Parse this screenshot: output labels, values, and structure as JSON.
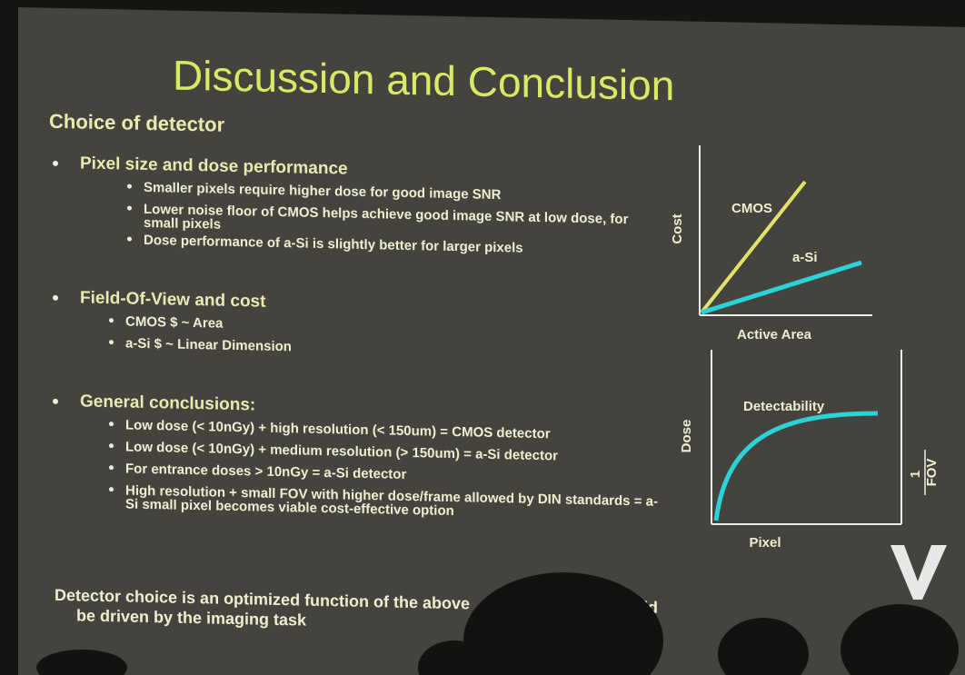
{
  "slide": {
    "title": "Discussion and Conclusion",
    "heading": "Choice of detector",
    "sections": [
      {
        "label": "Pixel size and dose performance",
        "items": [
          "Smaller pixels require higher dose for good image SNR",
          "Lower noise floor of CMOS helps achieve good image SNR at low dose, for small pixels",
          "Dose performance of a-Si is slightly better for larger pixels"
        ]
      },
      {
        "label": "Field-Of-View and cost",
        "items": [
          "CMOS $ ~ Area",
          "a-Si $ ~ Linear Dimension"
        ]
      },
      {
        "label": "General conclusions:",
        "items": [
          "Low dose (< 10nGy) + high resolution (< 150um) = CMOS detector",
          "Low dose (< 10nGy) + medium resolution (> 150um) = a-Si detector",
          "For entrance doses > 10nGy = a-Si detector",
          "High resolution + small FOV with higher dose/frame allowed by DIN standards = a-Si small pixel becomes viable cost-effective option"
        ]
      }
    ],
    "footer": [
      "Detector choice is an optimized function of the above",
      "should",
      "be driven by the imaging task"
    ],
    "diagram1": {
      "y_label": "Cost",
      "x_label": "Active Area",
      "line1": "CMOS",
      "line2": "a-Si"
    },
    "diagram2": {
      "y_label": "Dose",
      "x_label": "Pixel",
      "curve": "Detectability",
      "right_num": "1",
      "right_den": "FOV"
    }
  }
}
